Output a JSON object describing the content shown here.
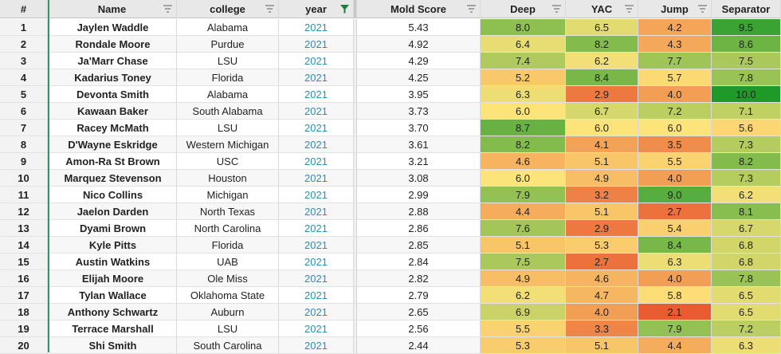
{
  "columns": {
    "num": "#",
    "name": "Name",
    "college": "college",
    "year": "year",
    "mold": "Mold Score",
    "deep": "Deep",
    "yac": "YAC",
    "jump": "Jump",
    "separator": "Separator"
  },
  "rows": [
    {
      "num": "1",
      "name": "Jaylen Waddle",
      "college": "Alabama",
      "year": "2021",
      "mold": "5.43",
      "deep": "8.0",
      "yac": "6.5",
      "jump": "4.2",
      "separator": "9.5"
    },
    {
      "num": "2",
      "name": "Rondale Moore",
      "college": "Purdue",
      "year": "2021",
      "mold": "4.92",
      "deep": "6.4",
      "yac": "8.2",
      "jump": "4.3",
      "separator": "8.6"
    },
    {
      "num": "3",
      "name": "Ja'Marr Chase",
      "college": "LSU",
      "year": "2021",
      "mold": "4.29",
      "deep": "7.4",
      "yac": "6.2",
      "jump": "7.7",
      "separator": "7.5"
    },
    {
      "num": "4",
      "name": "Kadarius Toney",
      "college": "Florida",
      "year": "2021",
      "mold": "4.25",
      "deep": "5.2",
      "yac": "8.4",
      "jump": "5.7",
      "separator": "7.8"
    },
    {
      "num": "5",
      "name": "Devonta Smith",
      "college": "Alabama",
      "year": "2021",
      "mold": "3.95",
      "deep": "6.3",
      "yac": "2.9",
      "jump": "4.0",
      "separator": "10.0"
    },
    {
      "num": "6",
      "name": "Kawaan Baker",
      "college": "South Alabama",
      "year": "2021",
      "mold": "3.73",
      "deep": "6.0",
      "yac": "6.7",
      "jump": "7.2",
      "separator": "7.1"
    },
    {
      "num": "7",
      "name": "Racey McMath",
      "college": "LSU",
      "year": "2021",
      "mold": "3.70",
      "deep": "8.7",
      "yac": "6.0",
      "jump": "6.0",
      "separator": "5.6"
    },
    {
      "num": "8",
      "name": "D'Wayne Eskridge",
      "college": "Western Michigan",
      "year": "2021",
      "mold": "3.61",
      "deep": "8.2",
      "yac": "4.1",
      "jump": "3.5",
      "separator": "7.3"
    },
    {
      "num": "9",
      "name": "Amon-Ra St Brown",
      "college": "USC",
      "year": "2021",
      "mold": "3.21",
      "deep": "4.6",
      "yac": "5.1",
      "jump": "5.5",
      "separator": "8.2"
    },
    {
      "num": "10",
      "name": "Marquez Stevenson",
      "college": "Houston",
      "year": "2021",
      "mold": "3.08",
      "deep": "6.0",
      "yac": "4.9",
      "jump": "4.0",
      "separator": "7.3"
    },
    {
      "num": "11",
      "name": "Nico Collins",
      "college": "Michigan",
      "year": "2021",
      "mold": "2.99",
      "deep": "7.9",
      "yac": "3.2",
      "jump": "9.0",
      "separator": "6.2"
    },
    {
      "num": "12",
      "name": "Jaelon Darden",
      "college": "North Texas",
      "year": "2021",
      "mold": "2.88",
      "deep": "4.4",
      "yac": "5.1",
      "jump": "2.7",
      "separator": "8.1"
    },
    {
      "num": "13",
      "name": "Dyami Brown",
      "college": "North Carolina",
      "year": "2021",
      "mold": "2.86",
      "deep": "7.6",
      "yac": "2.9",
      "jump": "5.4",
      "separator": "6.7"
    },
    {
      "num": "14",
      "name": "Kyle Pitts",
      "college": "Florida",
      "year": "2021",
      "mold": "2.85",
      "deep": "5.1",
      "yac": "5.3",
      "jump": "8.4",
      "separator": "6.8"
    },
    {
      "num": "15",
      "name": "Austin Watkins",
      "college": "UAB",
      "year": "2021",
      "mold": "2.84",
      "deep": "7.5",
      "yac": "2.7",
      "jump": "6.3",
      "separator": "6.8"
    },
    {
      "num": "16",
      "name": "Elijah Moore",
      "college": "Ole Miss",
      "year": "2021",
      "mold": "2.82",
      "deep": "4.9",
      "yac": "4.6",
      "jump": "4.0",
      "separator": "7.8"
    },
    {
      "num": "17",
      "name": "Tylan Wallace",
      "college": "Oklahoma State",
      "year": "2021",
      "mold": "2.79",
      "deep": "6.2",
      "yac": "4.7",
      "jump": "5.8",
      "separator": "6.5"
    },
    {
      "num": "18",
      "name": "Anthony Schwartz",
      "college": "Auburn",
      "year": "2021",
      "mold": "2.65",
      "deep": "6.9",
      "yac": "4.0",
      "jump": "2.1",
      "separator": "6.5"
    },
    {
      "num": "19",
      "name": "Terrace Marshall",
      "college": "LSU",
      "year": "2021",
      "mold": "2.56",
      "deep": "5.5",
      "yac": "3.3",
      "jump": "7.9",
      "separator": "7.2"
    },
    {
      "num": "20",
      "name": "Shi Smith",
      "college": "South Carolina",
      "year": "2021",
      "mold": "2.44",
      "deep": "5.3",
      "yac": "5.1",
      "jump": "4.4",
      "separator": "6.3"
    }
  ],
  "colors": {
    "header_bg": "#e8e8e8",
    "row_alt_bg": "#f3f3f3",
    "year_text": "#2b8fb3",
    "filter_icon": "#8a8a8a",
    "filter_icon_active": "#1a7f3c",
    "heat_low": "#e8582f",
    "heat_mid": "#fde47a",
    "heat_high": "#1f9a28"
  },
  "icons": {
    "filter": "filter-icon",
    "filter_active": "filter-active-icon"
  }
}
